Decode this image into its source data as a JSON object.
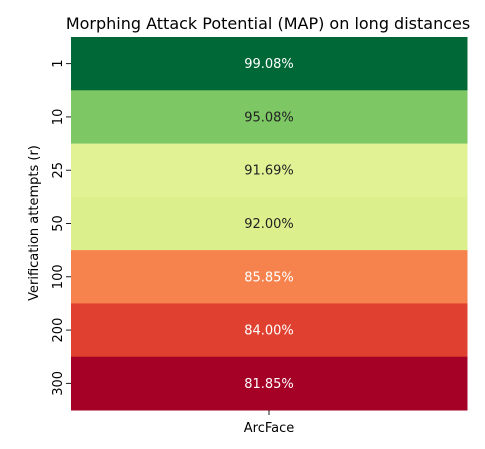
{
  "chart_data": {
    "type": "heatmap",
    "title": "Morphing Attack Potential (MAP) on long distances",
    "ylabel": "Verification attempts (r)",
    "xlabel": "",
    "columns": [
      "ArcFace"
    ],
    "rows": [
      "1",
      "10",
      "25",
      "50",
      "100",
      "200",
      "300"
    ],
    "values": [
      99.08,
      95.08,
      91.69,
      92.0,
      85.85,
      84.0,
      81.85
    ],
    "cell_labels": [
      "99.08%",
      "95.08%",
      "91.69%",
      "92.00%",
      "85.85%",
      "84.00%",
      "81.85%"
    ],
    "colormap": "RdYlGn",
    "cell_colors": [
      "#006837",
      "#7dc765",
      "#e1f295",
      "#dbf08c",
      "#f6834d",
      "#e0402f",
      "#a50026"
    ],
    "label_colors": [
      "#ffffff",
      "#222222",
      "#222222",
      "#222222",
      "#ffffff",
      "#ffffff",
      "#ffffff"
    ],
    "colorbar": false,
    "grid": false
  }
}
